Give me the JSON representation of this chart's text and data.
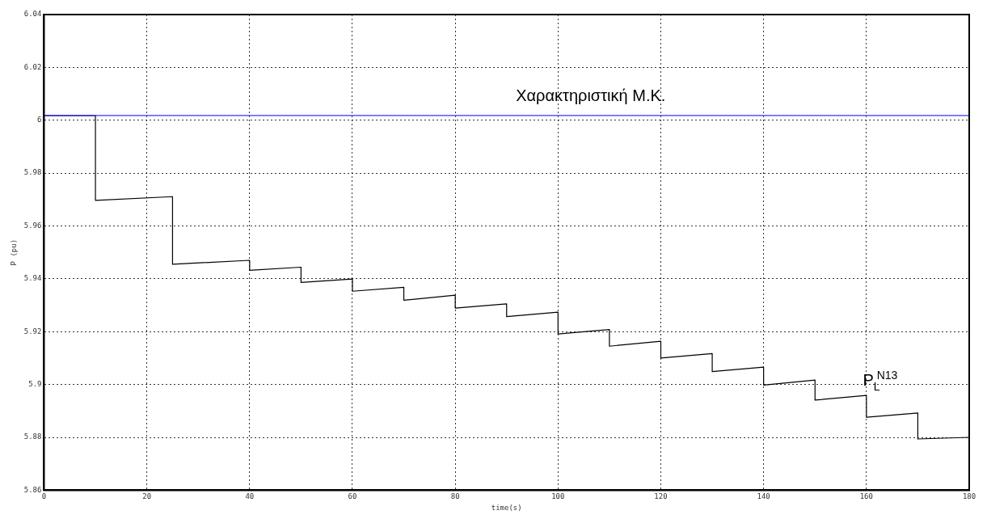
{
  "chart_data": {
    "type": "line",
    "xlabel": "time(s)",
    "ylabel": "P (pu)",
    "xlim": [
      0,
      180
    ],
    "xticks": [
      0,
      20,
      40,
      60,
      80,
      100,
      120,
      140,
      160,
      180
    ],
    "ylim": [
      5.86,
      6.04
    ],
    "yticks": [
      5.86,
      5.88,
      5.9,
      5.92,
      5.94,
      5.96,
      5.98,
      6,
      6.02,
      6.04
    ],
    "grid": true,
    "marker": "none",
    "line_style": "solid",
    "series": [
      {
        "name": "Χαρακτηριστική Μ.Κ.",
        "color": "#3333ff",
        "x": [
          0,
          180
        ],
        "values": [
          6.0018,
          6.0018
        ]
      },
      {
        "name": "P$_{L}$$^{N13}$",
        "color": "#000000",
        "x": [
          0,
          10,
          10,
          25,
          25,
          40,
          40,
          50,
          50,
          60,
          60,
          70,
          70,
          80,
          80,
          90,
          90,
          100,
          100,
          110,
          110,
          120,
          120,
          130,
          130,
          140,
          140,
          150,
          150,
          160,
          160,
          170,
          170,
          180
        ],
        "values": [
          6.0018,
          6.0018,
          5.9697,
          5.9711,
          5.9455,
          5.947,
          5.9432,
          5.9444,
          5.9386,
          5.9399,
          5.9353,
          5.9368,
          5.9319,
          5.9338,
          5.9289,
          5.9305,
          5.9257,
          5.9274,
          5.9191,
          5.9208,
          5.9145,
          5.9164,
          5.91,
          5.9117,
          5.9049,
          5.9066,
          5.8998,
          5.9017,
          5.8941,
          5.8959,
          5.8876,
          5.8892,
          5.8794,
          5.88
        ]
      }
    ]
  }
}
